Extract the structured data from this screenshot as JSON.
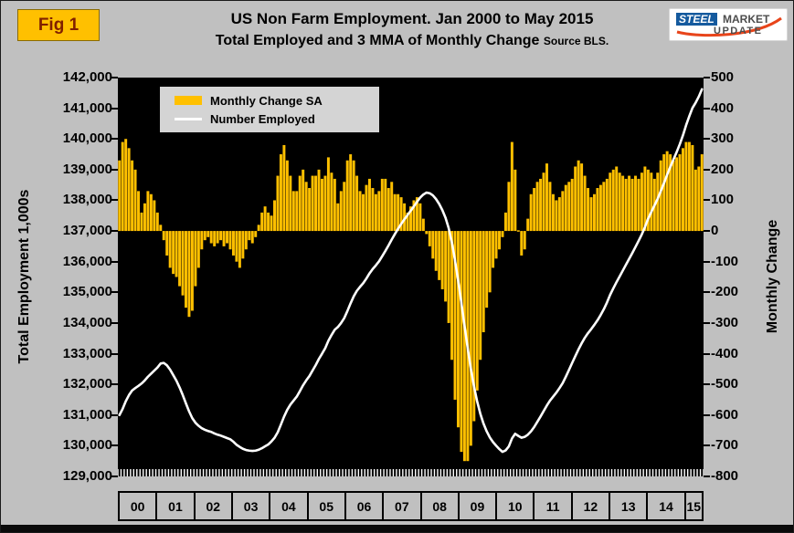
{
  "fig_label": "Fig 1",
  "logo": {
    "steel": "STEEL",
    "market": "MARKET",
    "update": "UPDATE"
  },
  "title_line1": "US Non Farm Employment. Jan 2000 to May 2015",
  "title_line2": "Total Employed and 3 MMA of Monthly Change",
  "title_source": "Source BLS.",
  "colors": {
    "background": "#C0C0C0",
    "plot_background": "#000000",
    "bar": "#FFC000",
    "line": "#FFFFFF",
    "fig_badge": "#FFC000",
    "fig_text": "#802000",
    "legend_background": "#D4D4D4"
  },
  "chart_data": {
    "type": "combo",
    "frequency": "monthly",
    "period_start": "Jan 2000",
    "period_end": "May 2015",
    "left_axis": {
      "label": "Total Employment 1,000s",
      "min": 129000,
      "max": 142000,
      "step": 1000,
      "tick_labels": [
        "142,000",
        "141,000",
        "140,000",
        "139,000",
        "138,000",
        "137,000",
        "136,000",
        "135,000",
        "134,000",
        "133,000",
        "132,000",
        "131,000",
        "130,000",
        "129,000"
      ]
    },
    "right_axis": {
      "label": "Monthly Change",
      "min": -800,
      "max": 500,
      "step": 100,
      "tick_labels": [
        "500",
        "400",
        "300",
        "200",
        "100",
        "0",
        "-100",
        "-200",
        "-300",
        "-400",
        "-500",
        "-600",
        "-700",
        "-800"
      ]
    },
    "x_axis": {
      "year_labels": [
        "00",
        "01",
        "02",
        "03",
        "04",
        "05",
        "06",
        "07",
        "08",
        "09",
        "10",
        "11",
        "12",
        "13",
        "14",
        "15"
      ],
      "months_per_year": [
        12,
        12,
        12,
        12,
        12,
        12,
        12,
        12,
        12,
        12,
        12,
        12,
        12,
        12,
        12,
        5
      ]
    },
    "legend": [
      {
        "label": "Monthly Change SA",
        "marker": "bar"
      },
      {
        "label": "Number Employed",
        "marker": "line"
      }
    ],
    "series": [
      {
        "name": "Monthly Change SA",
        "type": "bar",
        "axis": "right",
        "color": "#FFC000",
        "values": [
          230,
          290,
          300,
          270,
          230,
          200,
          130,
          60,
          90,
          130,
          120,
          100,
          60,
          20,
          -30,
          -80,
          -120,
          -140,
          -150,
          -180,
          -210,
          -250,
          -280,
          -260,
          -180,
          -120,
          -60,
          -30,
          -20,
          -40,
          -50,
          -40,
          -30,
          -50,
          -40,
          -60,
          -80,
          -100,
          -120,
          -90,
          -60,
          -30,
          -40,
          -20,
          20,
          60,
          80,
          60,
          50,
          100,
          180,
          250,
          280,
          230,
          180,
          130,
          130,
          180,
          200,
          160,
          140,
          180,
          180,
          200,
          170,
          180,
          240,
          190,
          170,
          90,
          130,
          160,
          230,
          250,
          230,
          180,
          130,
          120,
          150,
          170,
          140,
          120,
          130,
          170,
          170,
          140,
          160,
          120,
          120,
          110,
          90,
          60,
          80,
          100,
          110,
          90,
          40,
          -10,
          -50,
          -90,
          -130,
          -160,
          -190,
          -230,
          -300,
          -420,
          -550,
          -640,
          -720,
          -750,
          -750,
          -700,
          -620,
          -520,
          -420,
          -330,
          -250,
          -200,
          -120,
          -90,
          -60,
          -20,
          60,
          160,
          290,
          200,
          0,
          -80,
          -60,
          40,
          120,
          140,
          160,
          170,
          190,
          220,
          160,
          120,
          100,
          110,
          130,
          150,
          160,
          170,
          210,
          230,
          220,
          180,
          140,
          110,
          120,
          140,
          150,
          160,
          170,
          190,
          200,
          210,
          190,
          180,
          170,
          180,
          170,
          180,
          170,
          190,
          210,
          200,
          190,
          170,
          190,
          230,
          250,
          260,
          250,
          230,
          240,
          250,
          270,
          290,
          290,
          280,
          200,
          210,
          250
        ]
      },
      {
        "name": "Number Employed",
        "type": "line",
        "axis": "left",
        "color": "#FFFFFF",
        "values": [
          131000,
          131200,
          131450,
          131650,
          131800,
          131880,
          131950,
          132030,
          132130,
          132250,
          132350,
          132450,
          132550,
          132680,
          132700,
          132620,
          132480,
          132300,
          132120,
          131900,
          131650,
          131380,
          131120,
          130900,
          130750,
          130650,
          130570,
          130520,
          130480,
          130450,
          130400,
          130360,
          130330,
          130290,
          130250,
          130210,
          130130,
          130030,
          129960,
          129900,
          129860,
          129840,
          129830,
          129840,
          129870,
          129920,
          129980,
          130040,
          130140,
          130260,
          130440,
          130690,
          130950,
          131170,
          131340,
          131470,
          131600,
          131780,
          131970,
          132130,
          132270,
          132450,
          132630,
          132830,
          133000,
          133180,
          133420,
          133610,
          133780,
          133870,
          134000,
          134160,
          134390,
          134640,
          134870,
          135050,
          135180,
          135300,
          135450,
          135620,
          135760,
          135880,
          136010,
          136180,
          136350,
          136530,
          136720,
          136900,
          137070,
          137230,
          137380,
          137520,
          137660,
          137800,
          137950,
          138090,
          138190,
          138250,
          138230,
          138160,
          138040,
          137880,
          137680,
          137430,
          137090,
          136630,
          136040,
          135380,
          134660,
          133910,
          133180,
          132510,
          131930,
          131440,
          131040,
          130720,
          130470,
          130270,
          130120,
          130000,
          129890,
          129800,
          129850,
          129980,
          130240,
          130390,
          130320,
          130260,
          130290,
          130360,
          130470,
          130610,
          130780,
          130950,
          131130,
          131310,
          131470,
          131600,
          131730,
          131880,
          132040,
          132250,
          132470,
          132700,
          132920,
          133140,
          133340,
          133520,
          133670,
          133800,
          133940,
          134090,
          134260,
          134450,
          134670,
          134920,
          135130,
          135330,
          135520,
          135710,
          135900,
          136090,
          136280,
          136480,
          136680,
          136890,
          137130,
          137400,
          137620,
          137830,
          138050,
          138300,
          138560,
          138830,
          139090,
          139330,
          139570,
          139830,
          140120,
          140450,
          140740,
          141010,
          141180,
          141380,
          141620
        ]
      }
    ]
  }
}
